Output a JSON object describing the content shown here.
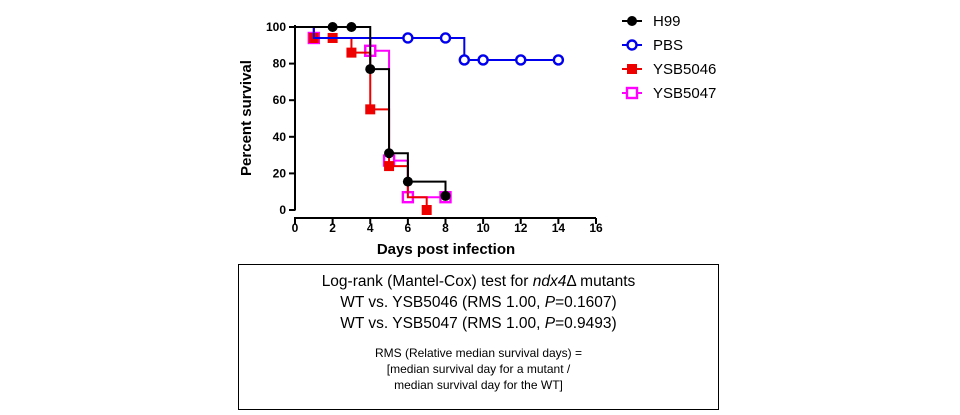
{
  "chart_data": {
    "type": "line",
    "subtype": "kaplan-meier step plot",
    "xlabel": "Days post infection",
    "ylabel": "Percent survival",
    "xlim": [
      0,
      16
    ],
    "ylim": [
      0,
      100
    ],
    "xticks": [
      0,
      2,
      4,
      6,
      8,
      10,
      12,
      14,
      16
    ],
    "yticks": [
      0,
      20,
      40,
      60,
      80,
      100
    ],
    "grid": false,
    "legend_position": "right",
    "series": [
      {
        "name": "H99",
        "color": "#000000",
        "marker": "filled-circle",
        "steps": [
          [
            0,
            100
          ],
          [
            3,
            100
          ],
          [
            4,
            77
          ],
          [
            5,
            31
          ],
          [
            6,
            15.5
          ],
          [
            8,
            7.7
          ]
        ],
        "points": [
          [
            2,
            100
          ],
          [
            3,
            100
          ],
          [
            4,
            77
          ],
          [
            5,
            31
          ],
          [
            6,
            15.5
          ],
          [
            8,
            7.7
          ]
        ]
      },
      {
        "name": "PBS",
        "color": "#0000ee",
        "marker": "open-circle",
        "steps": [
          [
            0,
            100
          ],
          [
            1,
            94
          ],
          [
            8,
            94
          ],
          [
            9,
            82
          ],
          [
            14,
            82
          ]
        ],
        "points": [
          [
            6,
            94
          ],
          [
            8,
            94
          ],
          [
            9,
            82
          ],
          [
            10,
            82
          ],
          [
            12,
            82
          ],
          [
            14,
            82
          ]
        ]
      },
      {
        "name": "YSB5046",
        "color": "#ee0000",
        "marker": "filled-square",
        "steps": [
          [
            0,
            100
          ],
          [
            1,
            94
          ],
          [
            3,
            86
          ],
          [
            4,
            55
          ],
          [
            5,
            24
          ],
          [
            6,
            7
          ],
          [
            7,
            0
          ]
        ],
        "points": [
          [
            1,
            94
          ],
          [
            2,
            94
          ],
          [
            3,
            86
          ],
          [
            4,
            55
          ],
          [
            5,
            24
          ],
          [
            7,
            0
          ]
        ]
      },
      {
        "name": "YSB5047",
        "color": "#ff00ff",
        "marker": "open-square",
        "steps": [
          [
            0,
            100
          ],
          [
            1,
            94
          ],
          [
            4,
            87
          ],
          [
            5,
            27
          ],
          [
            6,
            7
          ],
          [
            8,
            7
          ]
        ],
        "points": [
          [
            1,
            94
          ],
          [
            4,
            87
          ],
          [
            5,
            27
          ],
          [
            6,
            7
          ],
          [
            8,
            7
          ]
        ]
      }
    ]
  },
  "stats": {
    "line1_pre": "Log-rank (Mantel-Cox) test for ",
    "line1_gene": "ndx4",
    "line1_delta": "Δ",
    "line1_post": " mutants",
    "line2_pre": "WT vs. YSB5046 (RMS 1.00, ",
    "line2_p": "P",
    "line2_post": "=0.1607)",
    "line3_pre": "WT vs. YSB5047 (RMS 1.00, ",
    "line3_p": "P",
    "line3_post": "=0.9493)",
    "note1": "RMS (Relative median survival days) =",
    "note2": "[median survival day for a mutant  /",
    "note3": "median survival day for the WT]"
  }
}
